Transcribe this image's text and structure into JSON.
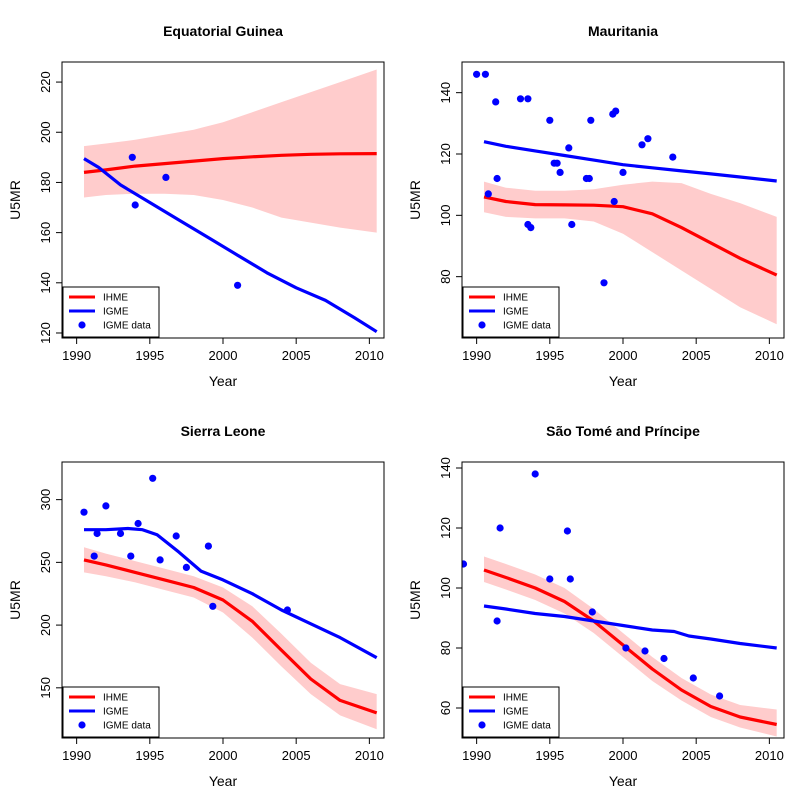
{
  "chart_data": [
    {
      "type": "line",
      "title": "Equatorial Guinea",
      "xlabel": "Year",
      "ylabel": "U5MR",
      "xlim": [
        1989.0,
        2011.0
      ],
      "ylim": [
        118,
        228
      ],
      "xticks": [
        1990,
        1995,
        2000,
        2005,
        2010
      ],
      "yticks": [
        120,
        140,
        160,
        180,
        200,
        220
      ],
      "legend_position": "bottom-left",
      "series": [
        {
          "name": "IHME",
          "color": "#ff0000",
          "x": [
            1990.5,
            1992,
            1994,
            1996,
            1998,
            2000,
            2002,
            2004,
            2006,
            2008,
            2010.5
          ],
          "y": [
            184,
            185,
            186.5,
            187.5,
            188.5,
            189.5,
            190.2,
            190.8,
            191.2,
            191.4,
            191.5
          ]
        },
        {
          "name": "IGME",
          "color": "#0000ff",
          "x": [
            1990.5,
            1991.5,
            1993,
            1995,
            1997,
            1999,
            2001,
            2003,
            2005,
            2007,
            2009,
            2010.5
          ],
          "y": [
            189.5,
            186,
            179,
            172,
            165,
            158,
            151,
            144,
            138,
            133,
            126,
            120.5
          ]
        }
      ],
      "band": {
        "name": "IHME uncertainty",
        "color": "#ffcccc",
        "x": [
          1990.5,
          1992,
          1994,
          1996,
          1998,
          2000,
          2002,
          2004,
          2006,
          2008,
          2010.5
        ],
        "lower": [
          174,
          175,
          175.5,
          175.5,
          175,
          173,
          170,
          166,
          164,
          162,
          160
        ],
        "upper": [
          194.5,
          195.5,
          197,
          199,
          201,
          204,
          208,
          212,
          216,
          220,
          225
        ]
      },
      "points": {
        "name": "IGME data",
        "color": "#0000ff",
        "x": [
          1993.8,
          1994,
          1996.1,
          2001
        ],
        "y": [
          190,
          171,
          182,
          139
        ]
      }
    },
    {
      "type": "line",
      "title": "Mauritania",
      "xlabel": "Year",
      "ylabel": "U5MR",
      "xlim": [
        1989.0,
        2011.0
      ],
      "ylim": [
        60,
        150
      ],
      "xticks": [
        1990,
        1995,
        2000,
        2005,
        2010
      ],
      "yticks": [
        80,
        100,
        120,
        140
      ],
      "legend_position": "bottom-left",
      "series": [
        {
          "name": "IHME",
          "color": "#ff0000",
          "x": [
            1990.5,
            1992,
            1994,
            1996,
            1998,
            2000,
            2002,
            2004,
            2006,
            2008,
            2010.5
          ],
          "y": [
            106,
            104.5,
            103.5,
            103.4,
            103.3,
            102.8,
            100.5,
            96,
            91,
            86,
            80.5
          ]
        },
        {
          "name": "IGME",
          "color": "#0000ff",
          "x": [
            1990.5,
            1992,
            1994,
            1996,
            1998,
            2000,
            2002,
            2004,
            2006,
            2008,
            2010.5
          ],
          "y": [
            124,
            122.5,
            121,
            119.5,
            118,
            116.5,
            115.5,
            114.5,
            113.5,
            112.5,
            111.2
          ]
        }
      ],
      "band": {
        "name": "IHME uncertainty",
        "color": "#ffcccc",
        "x": [
          1990.5,
          1992,
          1994,
          1996,
          1998,
          2000,
          2002,
          2004,
          2006,
          2008,
          2010.5
        ],
        "lower": [
          101,
          99.5,
          99,
          99,
          98,
          94,
          88,
          82,
          76,
          70,
          64.5
        ],
        "upper": [
          111,
          109,
          108,
          108,
          108.5,
          110,
          111,
          110.5,
          107,
          104,
          99.5
        ]
      },
      "points": {
        "name": "IGME data",
        "color": "#0000ff",
        "x": [
          1990,
          1990.6,
          1990.8,
          1991.3,
          1991.4,
          1993,
          1993.5,
          1993.5,
          1993.7,
          1995,
          1995.3,
          1995.5,
          1995.7,
          1996.3,
          1996.5,
          1997.5,
          1997.7,
          1997.8,
          1998.7,
          1999.3,
          1999.4,
          1999.5,
          2000,
          2001.3,
          2001.7,
          2003.4
        ],
        "y": [
          146,
          146,
          107,
          137,
          112,
          138,
          138,
          97,
          96,
          131,
          117,
          117,
          114,
          122,
          97,
          112,
          112,
          131,
          78,
          133,
          104.5,
          134,
          114,
          123,
          125,
          119
        ]
      }
    },
    {
      "type": "line",
      "title": "Sierra Leone",
      "xlabel": "Year",
      "ylabel": "U5MR",
      "xlim": [
        1989.0,
        2011.0
      ],
      "ylim": [
        110,
        330
      ],
      "xticks": [
        1990,
        1995,
        2000,
        2005,
        2010
      ],
      "yticks": [
        150,
        200,
        250,
        300
      ],
      "legend_position": "bottom-left",
      "series": [
        {
          "name": "IHME",
          "color": "#ff0000",
          "x": [
            1990.5,
            1992,
            1994,
            1996,
            1998,
            2000,
            2002,
            2004,
            2006,
            2008,
            2010.5
          ],
          "y": [
            252,
            248,
            242,
            236,
            230,
            220,
            203,
            180,
            157,
            140,
            130
          ]
        },
        {
          "name": "IGME",
          "color": "#0000ff",
          "x": [
            1990.5,
            1992,
            1993.5,
            1994.5,
            1995.5,
            1997,
            1998.5,
            2000,
            2002,
            2004,
            2006,
            2008,
            2010.5
          ],
          "y": [
            276,
            276,
            277,
            276,
            272,
            258,
            243,
            236,
            225,
            212,
            201,
            190,
            174
          ]
        }
      ],
      "band": {
        "name": "IHME uncertainty",
        "color": "#ffcccc",
        "x": [
          1990.5,
          1992,
          1994,
          1996,
          1998,
          2000,
          2002,
          2004,
          2006,
          2008,
          2010.5
        ],
        "lower": [
          242,
          239,
          234,
          228,
          222,
          210,
          190,
          167,
          145,
          128,
          117
        ],
        "upper": [
          262,
          257,
          251,
          245,
          239,
          230,
          215,
          193,
          170,
          153,
          145
        ]
      },
      "points": {
        "name": "IGME data",
        "color": "#0000ff",
        "x": [
          1990.5,
          1991.2,
          1991.4,
          1992,
          1993,
          1993.7,
          1994.2,
          1995.2,
          1995.7,
          1996.8,
          1997.5,
          1999,
          1999.3,
          2004.4
        ],
        "y": [
          290,
          255,
          273,
          295,
          273,
          255,
          281,
          317,
          252,
          271,
          246,
          263,
          215,
          212
        ]
      }
    },
    {
      "type": "line",
      "title": "São Tomé and Príncipe",
      "xlabel": "Year",
      "ylabel": "U5MR",
      "xlim": [
        1989.0,
        2011.0
      ],
      "ylim": [
        50,
        142
      ],
      "xticks": [
        1990,
        1995,
        2000,
        2005,
        2010
      ],
      "yticks": [
        60,
        80,
        100,
        120,
        140
      ],
      "legend_position": "bottom-left",
      "series": [
        {
          "name": "IHME",
          "color": "#ff0000",
          "x": [
            1990.5,
            1992,
            1994,
            1996,
            1998,
            2000,
            2002,
            2004,
            2006,
            2008,
            2010.5
          ],
          "y": [
            106,
            103.5,
            100,
            95.5,
            89,
            81,
            73,
            66,
            60.5,
            57,
            54.5
          ]
        },
        {
          "name": "IGME",
          "color": "#0000ff",
          "x": [
            1990.5,
            1992,
            1994,
            1996,
            1998,
            2000,
            2002,
            2003.5,
            2004.5,
            2006,
            2008,
            2010.5
          ],
          "y": [
            94,
            93,
            91.5,
            90.5,
            89,
            87.5,
            86,
            85.5,
            84,
            83,
            81.5,
            80
          ]
        }
      ],
      "band": {
        "name": "IHME uncertainty",
        "color": "#ffcccc",
        "x": [
          1990.5,
          1992,
          1994,
          1996,
          1998,
          2000,
          2002,
          2004,
          2006,
          2008,
          2010.5
        ],
        "lower": [
          102,
          99.5,
          96,
          91.5,
          85,
          77,
          69,
          62.5,
          57,
          53.5,
          50.5
        ],
        "upper": [
          110.5,
          108,
          104.5,
          100,
          93,
          85,
          77,
          70,
          64.5,
          61,
          59.5
        ]
      },
      "points": {
        "name": "IGME data",
        "color": "#0000ff",
        "x": [
          1989.1,
          1991.4,
          1991.6,
          1994,
          1995,
          1996.2,
          1996.4,
          1997.9,
          2000.2,
          2001.5,
          2002.8,
          2004.8,
          2006.6
        ],
        "y": [
          108,
          89,
          120,
          138,
          103,
          119,
          103,
          92,
          80,
          79,
          76.5,
          70,
          64
        ]
      }
    }
  ]
}
